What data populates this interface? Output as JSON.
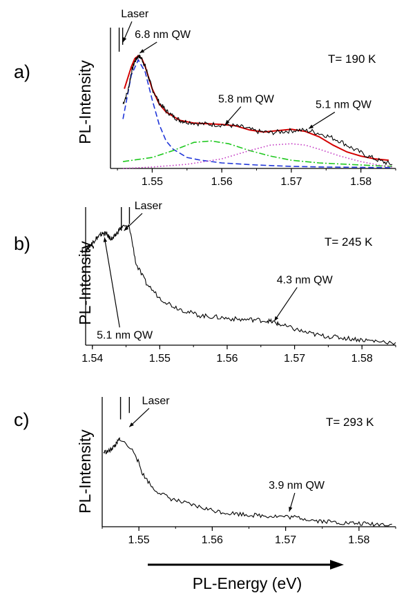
{
  "xlabel": "PL-Energy (eV)",
  "chart_data": [
    {
      "panel_label": "a)",
      "type": "line",
      "ylabel": "PL-Intensity",
      "temperature": "T= 190 K",
      "xlim": [
        1.544,
        1.585
      ],
      "ylim": [
        0,
        1.0
      ],
      "xticks": [
        1.55,
        1.56,
        1.57,
        1.58
      ],
      "xtick_labels": [
        "1.55",
        "1.56",
        "1.57",
        "1.58"
      ],
      "laser_line": {
        "x": 1.5455,
        "width": 0.0005
      },
      "measured_color": "#000000",
      "measured": {
        "x": [
          1.5458,
          1.5465,
          1.547,
          1.5475,
          1.548,
          1.5485,
          1.549,
          1.5495,
          1.55,
          1.551,
          1.552,
          1.553,
          1.554,
          1.555,
          1.557,
          1.559,
          1.561,
          1.563,
          1.565,
          1.567,
          1.569,
          1.571,
          1.573,
          1.575,
          1.577,
          1.579,
          1.581,
          1.583,
          1.5845
        ],
        "y": [
          0.47,
          0.56,
          0.7,
          0.78,
          0.82,
          0.8,
          0.74,
          0.66,
          0.58,
          0.48,
          0.42,
          0.38,
          0.35,
          0.34,
          0.325,
          0.32,
          0.315,
          0.3,
          0.27,
          0.26,
          0.27,
          0.28,
          0.27,
          0.24,
          0.2,
          0.14,
          0.09,
          0.05,
          0.03
        ]
      },
      "fits": [
        {
          "style": "solid",
          "color": "#d40000",
          "x": [
            1.546,
            1.547,
            1.5475,
            1.548,
            1.5485,
            1.549,
            1.55,
            1.551,
            1.552,
            1.554,
            1.556,
            1.558,
            1.56,
            1.562,
            1.564,
            1.566,
            1.568,
            1.57,
            1.572,
            1.574,
            1.576,
            1.578,
            1.58,
            1.582,
            1.584
          ],
          "y": [
            0.58,
            0.74,
            0.8,
            0.82,
            0.8,
            0.74,
            0.58,
            0.47,
            0.41,
            0.35,
            0.33,
            0.325,
            0.32,
            0.31,
            0.28,
            0.265,
            0.275,
            0.285,
            0.27,
            0.23,
            0.17,
            0.12,
            0.09,
            0.07,
            0.06
          ]
        },
        {
          "style": "dashed",
          "color": "#1f35d8",
          "x": [
            1.5458,
            1.547,
            1.548,
            1.549,
            1.55,
            1.551,
            1.552,
            1.553,
            1.555,
            1.557,
            1.56,
            1.565,
            1.57,
            1.575,
            1.58,
            1.5845
          ],
          "y": [
            0.36,
            0.68,
            0.79,
            0.7,
            0.5,
            0.32,
            0.2,
            0.14,
            0.08,
            0.06,
            0.04,
            0.025,
            0.015,
            0.01,
            0.008,
            0.005
          ]
        },
        {
          "style": "dashdot",
          "color": "#1ec81e",
          "x": [
            1.5458,
            1.55,
            1.553,
            1.556,
            1.5585,
            1.561,
            1.564,
            1.567,
            1.57,
            1.574,
            1.578,
            1.582,
            1.5845
          ],
          "y": [
            0.05,
            0.08,
            0.13,
            0.19,
            0.2,
            0.18,
            0.13,
            0.09,
            0.06,
            0.04,
            0.03,
            0.02,
            0.015
          ]
        },
        {
          "style": "dotted",
          "color": "#c030c0",
          "x": [
            1.5458,
            1.55,
            1.555,
            1.56,
            1.564,
            1.567,
            1.57,
            1.572,
            1.574,
            1.577,
            1.58,
            1.583,
            1.5845
          ],
          "y": [
            0.0,
            0.01,
            0.03,
            0.07,
            0.13,
            0.17,
            0.18,
            0.17,
            0.14,
            0.09,
            0.05,
            0.02,
            0.01
          ]
        }
      ],
      "annotations": [
        {
          "text": "Laser",
          "tx": 1.5475,
          "ty": 1.1,
          "ax": 1.5458,
          "ay": 0.92
        },
        {
          "text": "6.8 nm QW",
          "tx": 1.5515,
          "ty": 0.95,
          "ax": 1.5482,
          "ay": 0.84
        },
        {
          "text": "5.8 nm QW",
          "tx": 1.5635,
          "ty": 0.48,
          "ax": 1.5605,
          "ay": 0.32
        },
        {
          "text": "5.1 nm QW",
          "tx": 1.5775,
          "ty": 0.44,
          "ax": 1.5725,
          "ay": 0.29
        }
      ]
    },
    {
      "panel_label": "b)",
      "type": "line",
      "ylabel": "PL-Intensity",
      "temperature": "T= 245 K",
      "xlim": [
        1.539,
        1.585
      ],
      "ylim": [
        0,
        1.0
      ],
      "xticks": [
        1.54,
        1.55,
        1.56,
        1.57,
        1.58
      ],
      "xtick_labels": [
        "1.54",
        "1.55",
        "1.56",
        "1.57",
        "1.58"
      ],
      "laser_line": {
        "x": 1.5449,
        "width": 0.0012
      },
      "measured_color": "#000000",
      "measured": {
        "x": [
          1.539,
          1.5395,
          1.54,
          1.5405,
          1.541,
          1.5415,
          1.542,
          1.5425,
          1.543,
          1.5435,
          1.5443,
          1.5455,
          1.5465,
          1.548,
          1.55,
          1.552,
          1.554,
          1.556,
          1.558,
          1.56,
          1.562,
          1.564,
          1.566,
          1.567,
          1.568,
          1.57,
          1.572,
          1.574,
          1.576,
          1.578,
          1.58,
          1.582,
          1.585
        ],
        "y": [
          0.71,
          0.73,
          0.76,
          0.79,
          0.81,
          0.83,
          0.83,
          0.8,
          0.79,
          0.82,
          0.88,
          0.88,
          0.6,
          0.46,
          0.35,
          0.29,
          0.25,
          0.22,
          0.21,
          0.2,
          0.19,
          0.19,
          0.18,
          0.17,
          0.15,
          0.12,
          0.09,
          0.07,
          0.06,
          0.05,
          0.04,
          0.03,
          0.02
        ]
      },
      "fits": [],
      "annotations": [
        {
          "text": "Laser",
          "tx": 1.5483,
          "ty": 1.01,
          "ax": 1.5447,
          "ay": 0.85
        },
        {
          "text": "5.1 nm QW",
          "tx": 1.5448,
          "ty": 0.05,
          "ax": 1.5418,
          "ay": 0.8
        },
        {
          "text": "4.3 nm QW",
          "tx": 1.5715,
          "ty": 0.46,
          "ax": 1.567,
          "ay": 0.18
        }
      ]
    },
    {
      "panel_label": "c)",
      "type": "line",
      "ylabel": "PL-Intensity",
      "temperature": "T= 293 K",
      "xlim": [
        1.545,
        1.585
      ],
      "ylim": [
        0,
        1.0
      ],
      "xticks": [
        1.55,
        1.56,
        1.57,
        1.58
      ],
      "xtick_labels": [
        "1.55",
        "1.56",
        "1.57",
        "1.58"
      ],
      "laser_line": {
        "x": 1.5481,
        "width": 0.0012
      },
      "measured_color": "#000000",
      "measured": {
        "x": [
          1.5452,
          1.546,
          1.5465,
          1.547,
          1.5474,
          1.5495,
          1.5505,
          1.552,
          1.554,
          1.556,
          1.558,
          1.56,
          1.562,
          1.564,
          1.566,
          1.568,
          1.57,
          1.572,
          1.574,
          1.576,
          1.578,
          1.58,
          1.582,
          1.5845
        ],
        "y": [
          0.59,
          0.6,
          0.63,
          0.66,
          0.7,
          0.58,
          0.42,
          0.3,
          0.23,
          0.19,
          0.16,
          0.13,
          0.11,
          0.1,
          0.09,
          0.085,
          0.08,
          0.07,
          0.05,
          0.04,
          0.03,
          0.025,
          0.02,
          0.02
        ]
      },
      "fits": [],
      "annotations": [
        {
          "text": "Laser",
          "tx": 1.5523,
          "ty": 0.97,
          "ax": 1.5487,
          "ay": 0.79
        },
        {
          "text": "3.9  nm QW",
          "tx": 1.5715,
          "ty": 0.3,
          "ax": 1.5705,
          "ay": 0.12
        }
      ]
    }
  ]
}
